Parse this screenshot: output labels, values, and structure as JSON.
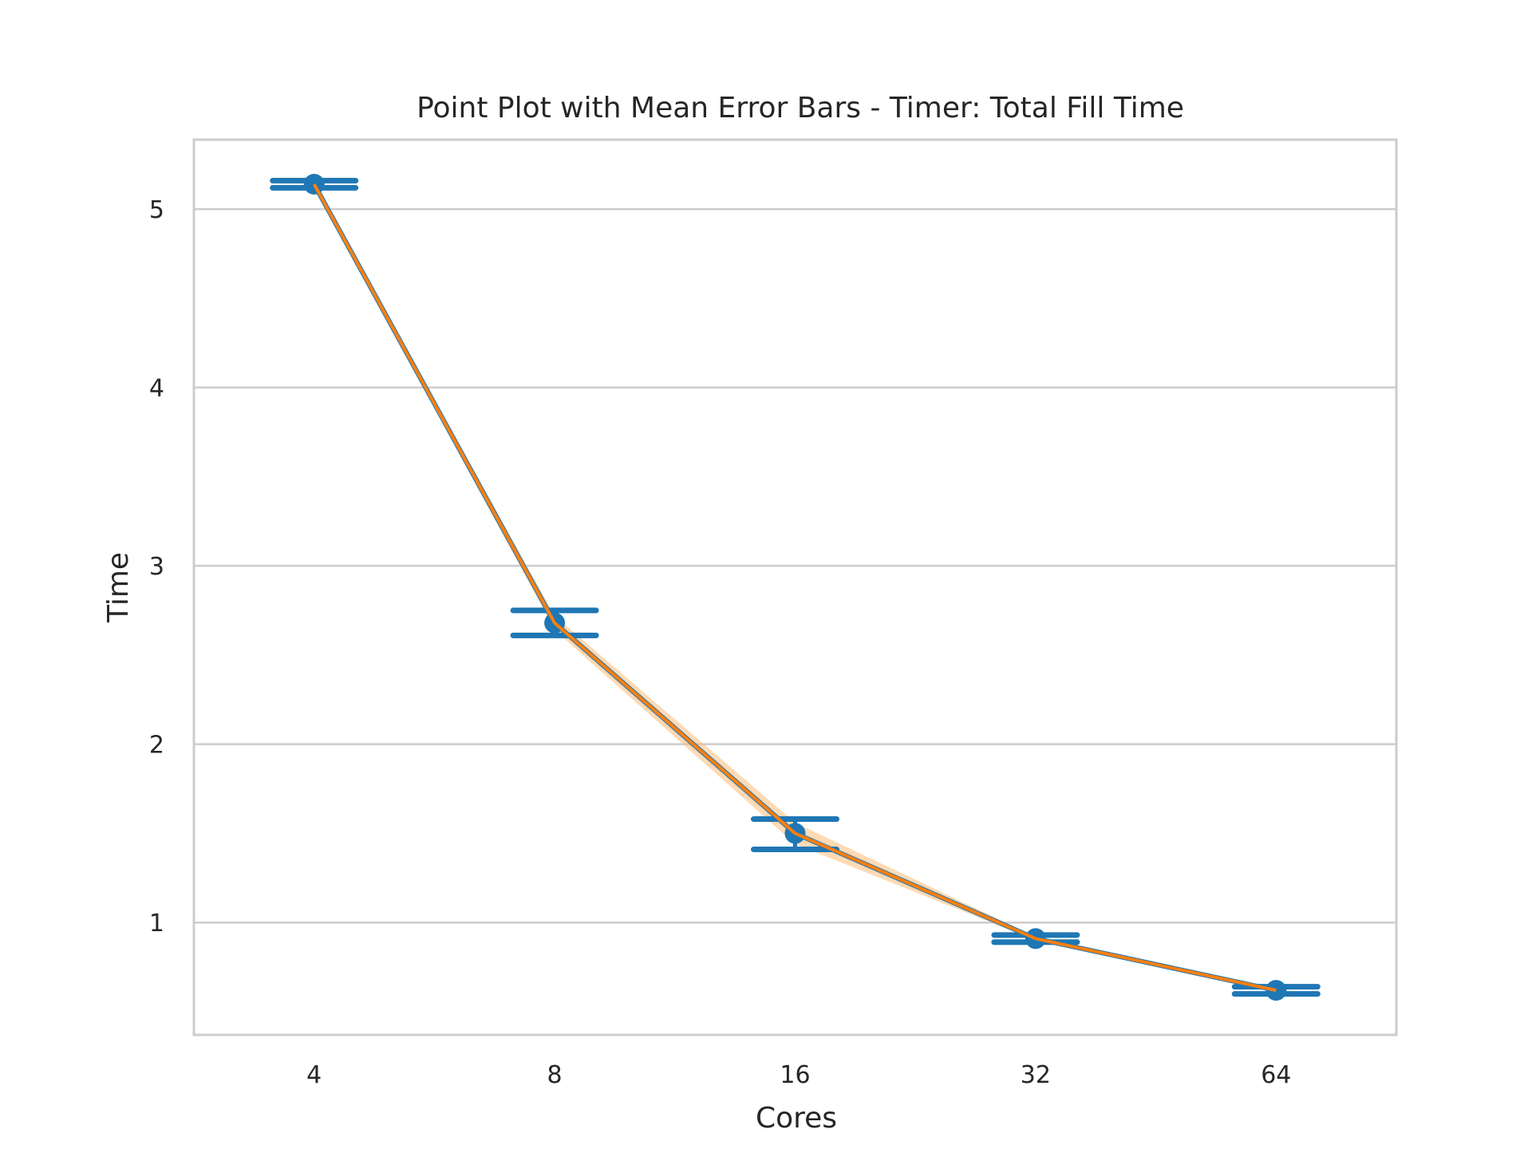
{
  "chart_data": {
    "type": "line",
    "title": "Point Plot with Mean Error Bars - Timer: Total Fill Time",
    "xlabel": "Cores",
    "ylabel": "Time",
    "categories": [
      "4",
      "8",
      "16",
      "32",
      "64"
    ],
    "ylim": [
      0.37,
      5.39
    ],
    "yticks": [
      1,
      2,
      3,
      4,
      5
    ],
    "grid": "horizontal",
    "series": [
      {
        "kind": "points-with-error-bars",
        "color": "#1f77b4",
        "values": [
          5.14,
          2.68,
          1.5,
          0.91,
          0.62
        ],
        "err_low": [
          5.12,
          2.61,
          1.41,
          0.89,
          0.6
        ],
        "err_high": [
          5.16,
          2.75,
          1.58,
          0.93,
          0.64
        ]
      },
      {
        "kind": "line-with-ci-band",
        "color": "#ff7f0e",
        "band_color": "#ffbb78",
        "values": [
          5.14,
          2.68,
          1.5,
          0.91,
          0.62
        ],
        "ci_low": [
          5.13,
          2.64,
          1.44,
          0.9,
          0.61
        ],
        "ci_high": [
          5.15,
          2.72,
          1.56,
          0.92,
          0.63
        ]
      }
    ]
  }
}
